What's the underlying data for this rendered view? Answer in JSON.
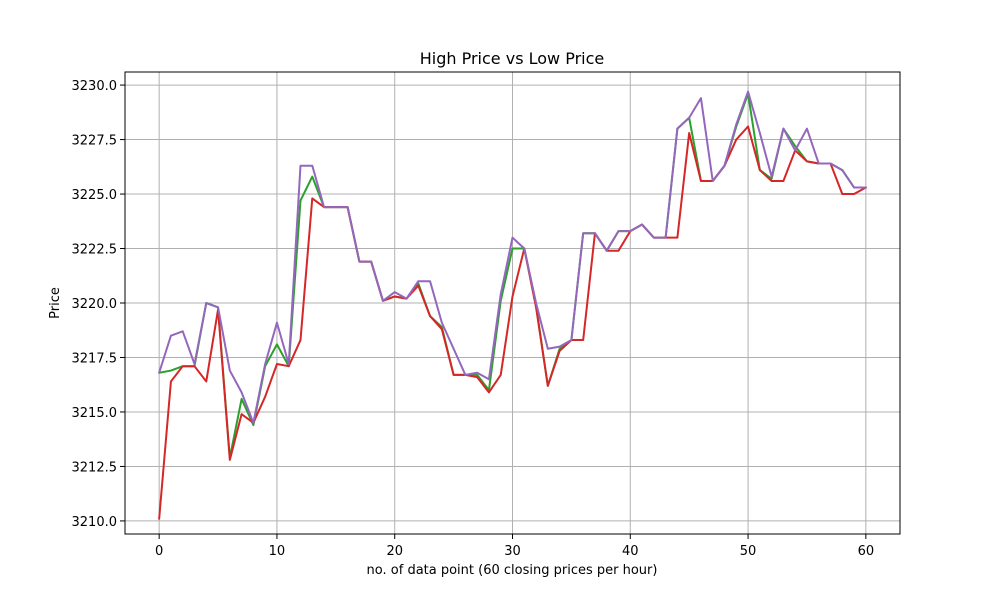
{
  "chart_data": {
    "type": "line",
    "title": "High Price vs Low Price",
    "xlabel": "no. of data point (60 closing prices per hour)",
    "ylabel": "Price",
    "xlim": [
      -2.9,
      62.9
    ],
    "ylim": [
      3209.4,
      3230.6
    ],
    "x_ticks": [
      0,
      10,
      20,
      30,
      40,
      50,
      60
    ],
    "y_ticks": [
      3210.0,
      3212.5,
      3215.0,
      3217.5,
      3220.0,
      3222.5,
      3225.0,
      3227.5,
      3230.0
    ],
    "grid": true,
    "x": [
      0,
      1,
      2,
      3,
      4,
      5,
      6,
      7,
      8,
      9,
      10,
      11,
      12,
      13,
      14,
      15,
      16,
      17,
      18,
      19,
      20,
      21,
      22,
      23,
      24,
      25,
      26,
      27,
      28,
      29,
      30,
      31,
      32,
      33,
      34,
      35,
      36,
      37,
      38,
      39,
      40,
      41,
      42,
      43,
      44,
      45,
      46,
      47,
      48,
      49,
      50,
      51,
      52,
      53,
      54,
      55,
      56,
      57,
      58,
      59,
      60
    ],
    "series": [
      {
        "color": "#2ca02c",
        "values": [
          3216.8,
          3216.9,
          3217.1,
          3217.1,
          3220.0,
          3219.8,
          3212.9,
          3215.6,
          3214.4,
          3217.1,
          3218.1,
          3217.1,
          3224.7,
          3225.8,
          3224.4,
          3224.4,
          3224.4,
          3221.9,
          3221.9,
          3220.1,
          3220.3,
          3220.2,
          3220.9,
          3219.4,
          3218.9,
          3216.7,
          3216.7,
          3216.7,
          3216.0,
          3220.1,
          3222.5,
          3222.5,
          3219.9,
          3216.2,
          3217.9,
          3218.3,
          3223.2,
          3223.2,
          3222.4,
          3223.3,
          3223.3,
          3223.6,
          3223.0,
          3223.0,
          3228.0,
          3228.5,
          3225.6,
          3225.6,
          3226.3,
          3228.1,
          3229.6,
          3226.1,
          3225.7,
          3228.0,
          3227.2,
          3226.5,
          3226.4,
          3226.4,
          3226.1,
          3225.3,
          3225.3
        ]
      },
      {
        "color": "#d62728",
        "values": [
          3210.1,
          3216.4,
          3217.1,
          3217.1,
          3216.4,
          3219.7,
          3212.8,
          3214.9,
          3214.5,
          3215.7,
          3217.2,
          3217.1,
          3218.3,
          3224.8,
          3224.4,
          3224.4,
          3224.4,
          3221.9,
          3221.9,
          3220.1,
          3220.3,
          3220.2,
          3220.8,
          3219.4,
          3218.8,
          3216.7,
          3216.7,
          3216.6,
          3215.9,
          3216.7,
          3220.3,
          3222.5,
          3219.8,
          3216.2,
          3217.8,
          3218.3,
          3218.3,
          3223.2,
          3222.4,
          3222.4,
          3223.3,
          3223.6,
          3223.0,
          3223.0,
          3223.0,
          3227.8,
          3225.6,
          3225.6,
          3226.3,
          3227.5,
          3228.1,
          3226.1,
          3225.6,
          3225.6,
          3227.0,
          3226.5,
          3226.4,
          3226.4,
          3225.0,
          3225.0,
          3225.3
        ]
      },
      {
        "color": "#9467bd",
        "values": [
          3216.8,
          3218.5,
          3218.7,
          3217.2,
          3220.0,
          3219.8,
          3216.9,
          3215.9,
          3214.5,
          3217.2,
          3219.1,
          3217.2,
          3226.3,
          3226.3,
          3224.4,
          3224.4,
          3224.4,
          3221.9,
          3221.9,
          3220.1,
          3220.5,
          3220.2,
          3221.0,
          3221.0,
          3219.1,
          3217.9,
          3216.7,
          3216.8,
          3216.5,
          3220.4,
          3223.0,
          3222.5,
          3220.0,
          3217.9,
          3218.0,
          3218.3,
          3223.2,
          3223.2,
          3222.4,
          3223.3,
          3223.3,
          3223.6,
          3223.0,
          3223.0,
          3228.0,
          3228.5,
          3229.4,
          3225.6,
          3226.3,
          3228.2,
          3229.7,
          3227.8,
          3225.8,
          3228.0,
          3227.0,
          3228.0,
          3226.4,
          3226.4,
          3226.1,
          3225.3,
          3225.3
        ]
      }
    ]
  }
}
